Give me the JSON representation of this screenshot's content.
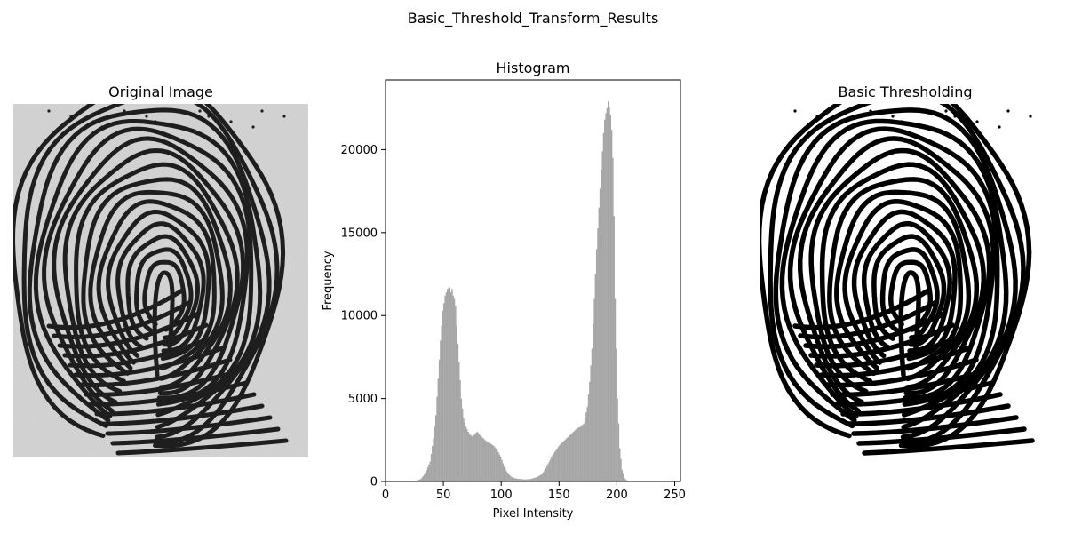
{
  "figure": {
    "suptitle": "Basic_Threshold_Transform_Results"
  },
  "panels": {
    "original": {
      "title": "Original Image"
    },
    "threshold": {
      "title": "Basic Thresholding"
    }
  },
  "chart_data": {
    "type": "bar",
    "title": "Histogram",
    "xlabel": "Pixel Intensity",
    "ylabel": "Frequency",
    "xlim": [
      0,
      255
    ],
    "ylim": [
      0,
      24200
    ],
    "xticks": [
      "0",
      "50",
      "100",
      "150",
      "200",
      "250"
    ],
    "yticks": [
      "0",
      "5000",
      "10000",
      "15000",
      "20000"
    ],
    "bar_color": "#a6a6a6",
    "grid": false,
    "x": [
      20,
      25,
      30,
      34,
      38,
      41,
      43,
      45,
      47,
      49,
      51,
      53,
      55,
      56,
      57,
      58,
      59,
      60,
      61,
      63,
      65,
      67,
      69,
      71,
      73,
      75,
      77,
      79,
      81,
      84,
      87,
      90,
      93,
      96,
      99,
      102,
      105,
      108,
      111,
      114,
      117,
      120,
      125,
      130,
      135,
      138,
      141,
      144,
      147,
      150,
      153,
      156,
      159,
      162,
      165,
      168,
      171,
      174,
      176,
      178,
      180,
      182,
      184,
      186,
      188,
      189,
      190,
      191,
      192,
      193,
      194,
      195,
      196,
      197,
      198,
      200,
      202,
      204,
      206,
      208,
      210,
      213,
      217,
      222,
      230
    ],
    "values": [
      0,
      30,
      150,
      500,
      1200,
      2600,
      4000,
      6200,
      8500,
      10300,
      11200,
      11600,
      11700,
      11400,
      11600,
      11200,
      11000,
      10600,
      9400,
      7200,
      5000,
      3800,
      3300,
      3000,
      2800,
      2700,
      2900,
      3000,
      2800,
      2600,
      2400,
      2300,
      2150,
      1900,
      1500,
      900,
      500,
      300,
      200,
      160,
      140,
      120,
      150,
      250,
      450,
      800,
      1200,
      1600,
      1900,
      2200,
      2400,
      2600,
      2800,
      3000,
      3200,
      3300,
      3500,
      4500,
      6000,
      8000,
      11000,
      14000,
      16500,
      18800,
      21000,
      21800,
      22200,
      22500,
      22900,
      22600,
      22100,
      21200,
      19500,
      16000,
      11000,
      5000,
      2000,
      700,
      200,
      80,
      30,
      10,
      5,
      0,
      0
    ]
  }
}
